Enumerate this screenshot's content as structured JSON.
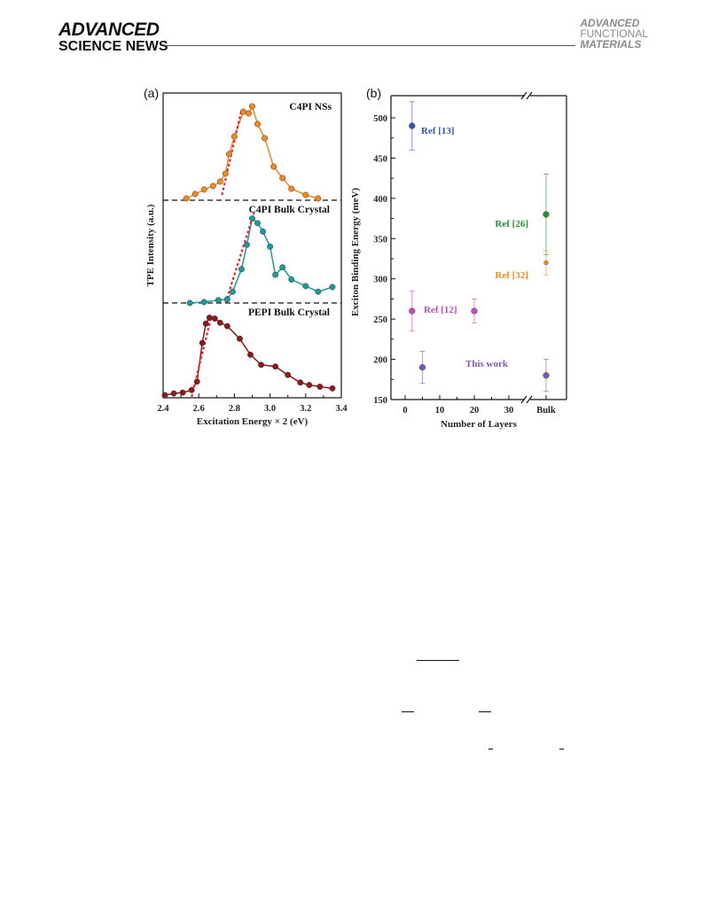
{
  "header": {
    "publisher_line1": "ADVANCED",
    "publisher_line2": "SCIENCE NEWS",
    "journal_line1": "ADVANCED",
    "journal_line2": "FUNCTIONAL",
    "journal_line3": "MATERIALS"
  },
  "colors": {
    "orange": "#f08a24",
    "teal": "#1e9a9a",
    "darkred": "#8b1a1a",
    "fit_red": "#e8282c",
    "blue": "#3b55a8",
    "green": "#2e8b3a",
    "magenta": "#c050b8",
    "purple": "#7a5ab0"
  },
  "chart_data": [
    {
      "type": "line",
      "panel": "(a)",
      "xlabel": "Excitation Energy × 2 (eV)",
      "ylabel": "TPE Intensity (a.u.)",
      "xlim": [
        2.4,
        3.4
      ],
      "xticks": [
        "2.4",
        "2.6",
        "2.8",
        "3.0",
        "3.2",
        "3.4"
      ],
      "series": [
        {
          "name": "C4PI NSs",
          "color": "#f08a24",
          "x": [
            2.53,
            2.58,
            2.63,
            2.68,
            2.72,
            2.75,
            2.77,
            2.8,
            2.85,
            2.88,
            2.9,
            2.93,
            2.97,
            3.02,
            3.07,
            3.12,
            3.2,
            3.27
          ],
          "y": [
            0.02,
            0.07,
            0.12,
            0.16,
            0.21,
            0.3,
            0.52,
            0.72,
            1.0,
            0.98,
            1.06,
            0.86,
            0.7,
            0.38,
            0.25,
            0.13,
            0.06,
            0.02
          ],
          "fit_x": [
            2.73,
            2.84
          ],
          "fit_y": [
            0.06,
            1.02
          ]
        },
        {
          "name": "C4PI Bulk Crystal",
          "color": "#1e9a9a",
          "x": [
            2.55,
            2.63,
            2.71,
            2.76,
            2.79,
            2.84,
            2.87,
            2.9,
            2.93,
            2.96,
            3.0,
            3.03,
            3.07,
            3.12,
            3.2,
            3.27,
            3.35
          ],
          "y": [
            0.0,
            0.01,
            0.03,
            0.04,
            0.12,
            0.36,
            0.62,
            0.9,
            0.85,
            0.76,
            0.6,
            0.3,
            0.38,
            0.25,
            0.18,
            0.12,
            0.17
          ],
          "fit_x": [
            2.75,
            2.91
          ],
          "fit_y": [
            0.0,
            0.96
          ]
        },
        {
          "name": "PEPI Bulk Crystal",
          "color": "#8b1a1a",
          "x": [
            2.41,
            2.46,
            2.51,
            2.56,
            2.59,
            2.62,
            2.64,
            2.66,
            2.69,
            2.72,
            2.76,
            2.83,
            2.89,
            2.95,
            3.03,
            3.1,
            3.17,
            3.22,
            3.28,
            3.35
          ],
          "y": [
            0.0,
            0.02,
            0.03,
            0.06,
            0.16,
            0.62,
            0.85,
            0.92,
            0.91,
            0.86,
            0.82,
            0.67,
            0.48,
            0.36,
            0.34,
            0.24,
            0.15,
            0.12,
            0.1,
            0.08
          ],
          "fit_x": [
            2.56,
            2.67
          ],
          "fit_y": [
            -0.02,
            0.93
          ]
        }
      ]
    },
    {
      "type": "scatter",
      "panel": "(b)",
      "xlabel": "Number of Layers",
      "ylabel": "Exciton Binding Energy (meV)",
      "ylim": [
        150,
        500
      ],
      "xticks": [
        "0",
        "10",
        "20",
        "30",
        "Bulk"
      ],
      "yticks": [
        "150",
        "200",
        "250",
        "300",
        "350",
        "400",
        "450",
        "500"
      ],
      "series": [
        {
          "name": "Ref [13]",
          "color": "#3b55a8",
          "x": [
            2
          ],
          "y": [
            490
          ],
          "err": [
            30
          ]
        },
        {
          "name": "Ref [26]",
          "color": "#2e8b3a",
          "x": [
            "Bulk"
          ],
          "y": [
            380
          ],
          "err": [
            50
          ]
        },
        {
          "name": "Ref [32]",
          "color": "#f08a24",
          "x": [
            "Bulk"
          ],
          "y": [
            320
          ],
          "err": [
            15
          ]
        },
        {
          "name": "Ref [12]",
          "color": "#c050b8",
          "x": [
            2,
            20
          ],
          "y": [
            260,
            260
          ],
          "err": [
            25,
            15
          ]
        },
        {
          "name": "This work",
          "color": "#7a5ab0",
          "x": [
            5,
            "Bulk"
          ],
          "y": [
            190,
            180
          ],
          "err": [
            20,
            20
          ]
        }
      ]
    }
  ]
}
